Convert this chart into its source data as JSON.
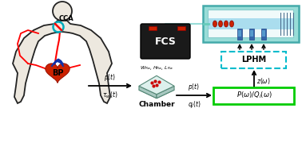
{
  "body_fill": "#ede8df",
  "body_edge": "#222222",
  "heart_red": "#cc2200",
  "heart_dark": "#991100",
  "heart_blue": "#1133aa",
  "cca_circle": "#00aabb",
  "arrow_color": "#111111",
  "arrow1_top": "$p(t)$",
  "arrow1_bot": "$\\tau_w(t)$",
  "arrow2_top": "$p(t)$",
  "arrow2_bot": "$q_l(t)$",
  "chamber_top": "$W_{Ra}$, $H_{Ra}$, $L_{Ra}$",
  "chamber_bot": "Chamber",
  "fcs_label": "FCS",
  "pq_label": "$P(\\omega)/Q_l(\\omega)$",
  "lphm_label": "LPHM",
  "z_label": "$z(\\omega)$",
  "cca_label": "CCA",
  "bp_label": "BP",
  "green_box": "#00cc00",
  "cyan_box": "#00bbcc",
  "chip_teal": "#99ddd8",
  "chip_edge": "#44aaaa",
  "fcs_fill": "#1a1a1a",
  "chip_face_light": "#d0ece8",
  "chip_face_top": "#c8e8e0",
  "red_dot": "#cc0000",
  "blue_pipe": "#2255aa"
}
